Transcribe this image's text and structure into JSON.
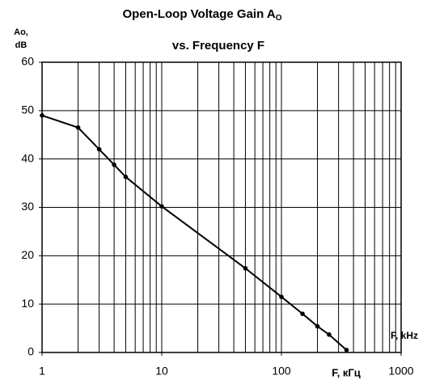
{
  "chart_data": {
    "type": "line",
    "title": "Open-Loop Voltage Gain A",
    "title_subscript": "O",
    "subtitle": "vs. Frequency F",
    "y_label": [
      "Ao,",
      "dB"
    ],
    "x_label": "F, kHz",
    "x_label_alt": "F, кГц",
    "x": [
      1,
      2,
      3,
      4,
      5,
      10,
      50,
      100,
      150,
      200,
      250,
      350
    ],
    "values": [
      49,
      46.5,
      42,
      38.8,
      36.3,
      30.2,
      17.4,
      11.5,
      8,
      5.4,
      3.7,
      0.5
    ],
    "color": "#000000",
    "log_x": true,
    "xlim": [
      1,
      1000
    ],
    "xticks": [
      1,
      10,
      100,
      1000
    ],
    "xgrid": [
      2,
      3,
      4,
      5,
      6,
      7,
      8,
      9,
      20,
      30,
      40,
      50,
      60,
      70,
      80,
      90,
      200,
      300,
      400,
      500,
      600,
      700,
      800,
      900
    ],
    "ylim": [
      0,
      60
    ],
    "yticks": [
      0,
      10,
      20,
      30,
      40,
      50,
      60
    ],
    "grid": true
  }
}
